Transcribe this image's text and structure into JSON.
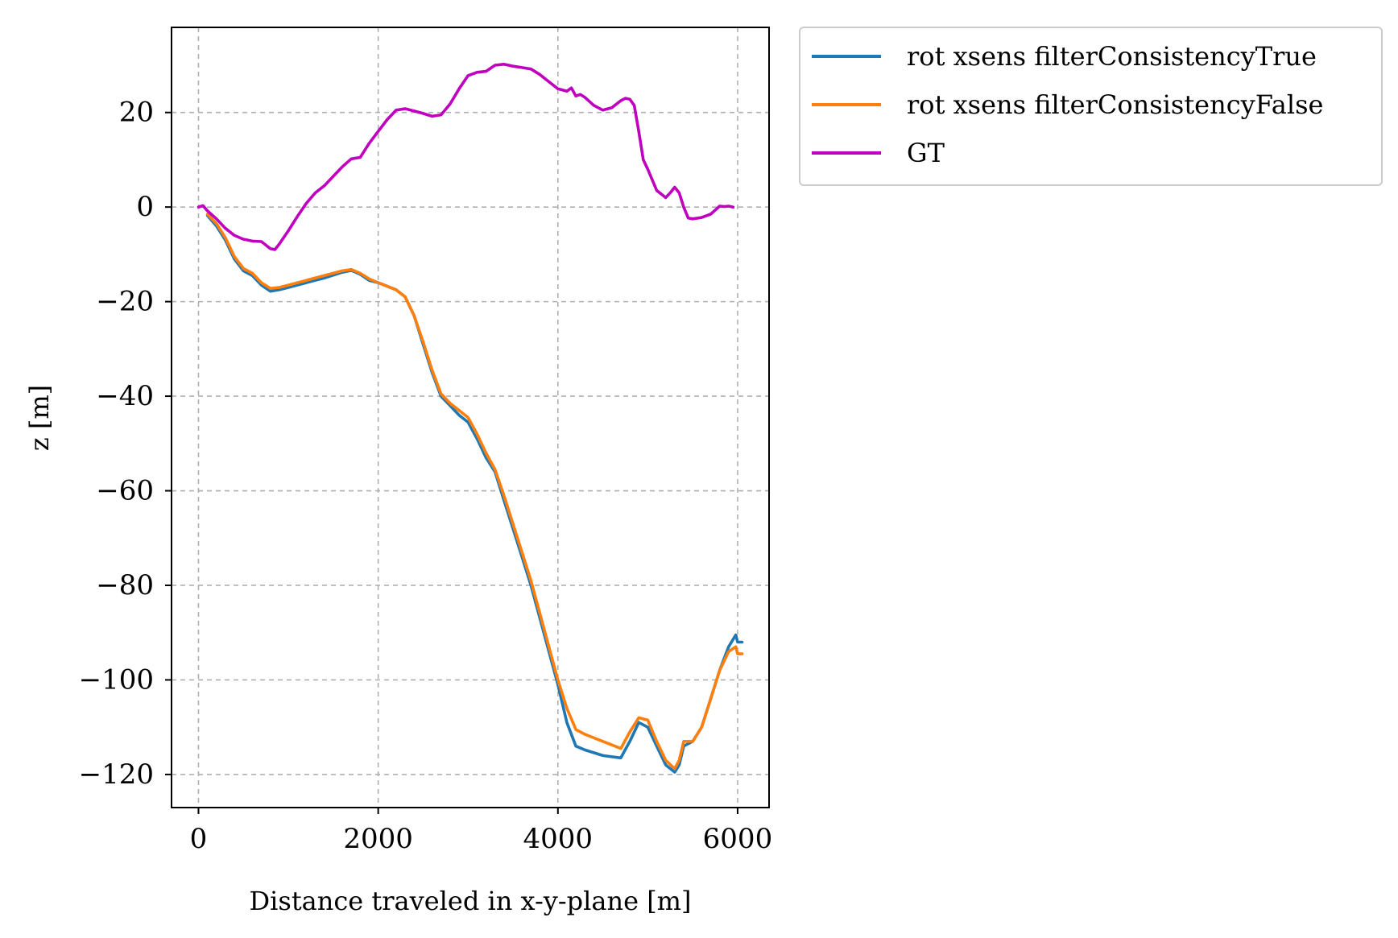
{
  "chart_data": {
    "type": "line",
    "title": "",
    "xlabel": "Distance traveled in x-y-plane [m]",
    "ylabel": "z [m]",
    "xlim": [
      -300,
      6350
    ],
    "ylim": [
      -127,
      38
    ],
    "xticks": [
      0,
      2000,
      4000,
      6000
    ],
    "xtick_labels": [
      "0",
      "2000",
      "4000",
      "6000"
    ],
    "yticks": [
      20,
      0,
      -20,
      -40,
      -60,
      -80,
      -100,
      -120
    ],
    "ytick_labels": [
      "20",
      "0",
      "−20",
      "−40",
      "−60",
      "−80",
      "−100",
      "−120"
    ],
    "grid": true,
    "legend_position": "outside top-right",
    "series": [
      {
        "name": "rot xsens filterConsistencyTrue",
        "color": "#1f77b4",
        "x": [
          100,
          200,
          300,
          400,
          500,
          600,
          700,
          800,
          900,
          1000,
          1200,
          1400,
          1600,
          1700,
          1800,
          1900,
          2000,
          2200,
          2300,
          2400,
          2500,
          2600,
          2700,
          2800,
          2900,
          3000,
          3100,
          3200,
          3300,
          3400,
          3500,
          3600,
          3700,
          3800,
          3900,
          4000,
          4100,
          4200,
          4300,
          4500,
          4700,
          4800,
          4900,
          5000,
          5100,
          5200,
          5300,
          5350,
          5400,
          5500,
          5600,
          5700,
          5800,
          5900,
          5980,
          6000,
          6050
        ],
        "y": [
          -1.8,
          -4,
          -7,
          -11,
          -13.5,
          -14.5,
          -16.5,
          -17.8,
          -17.5,
          -17,
          -16,
          -15,
          -13.8,
          -13.4,
          -14.2,
          -15.5,
          -16,
          -17.5,
          -19,
          -23,
          -29,
          -35,
          -40,
          -42,
          -44,
          -45.5,
          -49,
          -53,
          -56,
          -62,
          -68,
          -74,
          -80,
          -87,
          -94,
          -101,
          -109,
          -114,
          -114.8,
          -116,
          -116.5,
          -113,
          -109,
          -110,
          -114,
          -118,
          -119.5,
          -118,
          -114,
          -113,
          -110,
          -104,
          -98,
          -93,
          -90.5,
          -92,
          -92
        ]
      },
      {
        "name": "rot xsens filterConsistencyFalse",
        "color": "#ff7f0e",
        "x": [
          100,
          200,
          300,
          400,
          500,
          600,
          700,
          800,
          900,
          1000,
          1200,
          1400,
          1600,
          1700,
          1800,
          1900,
          2000,
          2200,
          2300,
          2400,
          2500,
          2600,
          2700,
          2800,
          2900,
          3000,
          3100,
          3200,
          3300,
          3400,
          3500,
          3600,
          3700,
          3800,
          3900,
          4000,
          4100,
          4200,
          4300,
          4500,
          4700,
          4800,
          4900,
          5000,
          5100,
          5200,
          5300,
          5350,
          5400,
          5500,
          5600,
          5700,
          5800,
          5900,
          5980,
          6000,
          6050
        ],
        "y": [
          -1.5,
          -3.5,
          -6.5,
          -10.5,
          -13,
          -14,
          -16,
          -17.2,
          -17,
          -16.5,
          -15.5,
          -14.5,
          -13.5,
          -13.2,
          -14,
          -15.2,
          -16,
          -17.5,
          -19,
          -23,
          -28.5,
          -34.5,
          -39.5,
          -41.5,
          -43,
          -44.5,
          -48,
          -52,
          -55.5,
          -61,
          -67,
          -73,
          -79,
          -86,
          -93,
          -100,
          -106,
          -110.5,
          -111.5,
          -113,
          -114.5,
          -111,
          -108,
          -108.5,
          -113,
          -117,
          -118.8,
          -117,
          -113,
          -113,
          -110,
          -104,
          -98,
          -94,
          -93,
          -94.5,
          -94.5
        ]
      },
      {
        "name": "GT",
        "color": "#bf00bf",
        "x": [
          0,
          50,
          100,
          200,
          300,
          400,
          500,
          600,
          700,
          800,
          850,
          900,
          1000,
          1100,
          1200,
          1300,
          1400,
          1500,
          1600,
          1700,
          1800,
          1850,
          1900,
          2000,
          2100,
          2200,
          2300,
          2400,
          2500,
          2600,
          2700,
          2800,
          2900,
          3000,
          3100,
          3200,
          3300,
          3400,
          3500,
          3600,
          3700,
          3800,
          3900,
          4000,
          4100,
          4150,
          4200,
          4250,
          4300,
          4400,
          4500,
          4600,
          4700,
          4750,
          4800,
          4850,
          4900,
          4950,
          5000,
          5100,
          5200,
          5250,
          5300,
          5350,
          5400,
          5450,
          5500,
          5600,
          5700,
          5800,
          5850,
          5900,
          5950
        ],
        "y": [
          0,
          0.3,
          -0.8,
          -2.5,
          -4.5,
          -6,
          -6.8,
          -7.2,
          -7.3,
          -8.8,
          -9,
          -7.8,
          -5,
          -2,
          0.8,
          3,
          4.5,
          6.5,
          8.5,
          10.2,
          10.5,
          12,
          13.5,
          16,
          18.5,
          20.5,
          20.8,
          20.3,
          19.8,
          19.2,
          19.5,
          21.8,
          25,
          27.8,
          28.5,
          28.7,
          30,
          30.2,
          29.8,
          29.5,
          29.2,
          28,
          26.5,
          25,
          24.5,
          25.2,
          23.5,
          23.8,
          23.2,
          21.5,
          20.5,
          21,
          22.5,
          23,
          22.8,
          21.5,
          16,
          10,
          8,
          3.5,
          2,
          3,
          4.2,
          3,
          0,
          -2.3,
          -2.5,
          -2.2,
          -1.5,
          0.2,
          0.1,
          0.2,
          0
        ]
      }
    ]
  }
}
